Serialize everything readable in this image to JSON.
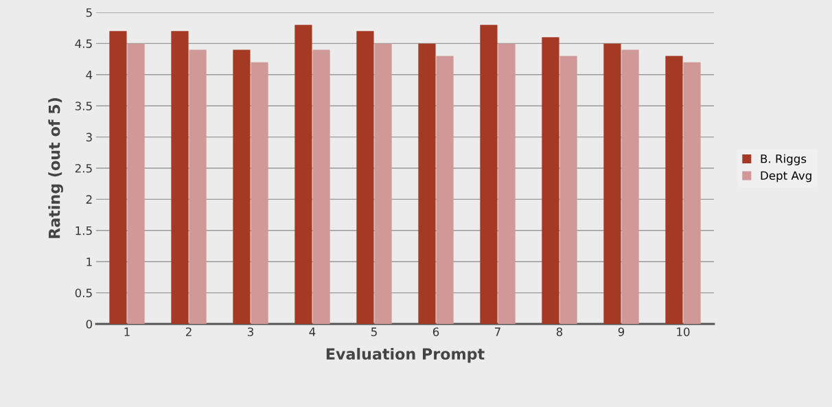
{
  "chart_data": {
    "type": "bar",
    "xlabel": "Evaluation Prompt",
    "ylabel": "Rating (out of 5)",
    "categories": [
      "1",
      "2",
      "3",
      "4",
      "5",
      "6",
      "7",
      "8",
      "9",
      "10"
    ],
    "series": [
      {
        "name": "B. Riggs",
        "color": "#a53a24",
        "values": [
          4.7,
          4.7,
          4.4,
          4.8,
          4.7,
          4.5,
          4.8,
          4.6,
          4.5,
          4.3
        ]
      },
      {
        "name": "Dept Avg",
        "color": "#d09896",
        "values": [
          4.5,
          4.4,
          4.2,
          4.4,
          4.5,
          4.3,
          4.5,
          4.3,
          4.4,
          4.2
        ]
      }
    ],
    "ylim": [
      0,
      5
    ],
    "yticks": [
      0,
      0.5,
      1,
      1.5,
      2,
      2.5,
      3,
      3.5,
      4,
      4.5,
      5
    ],
    "grid": "y",
    "legend": "right"
  }
}
